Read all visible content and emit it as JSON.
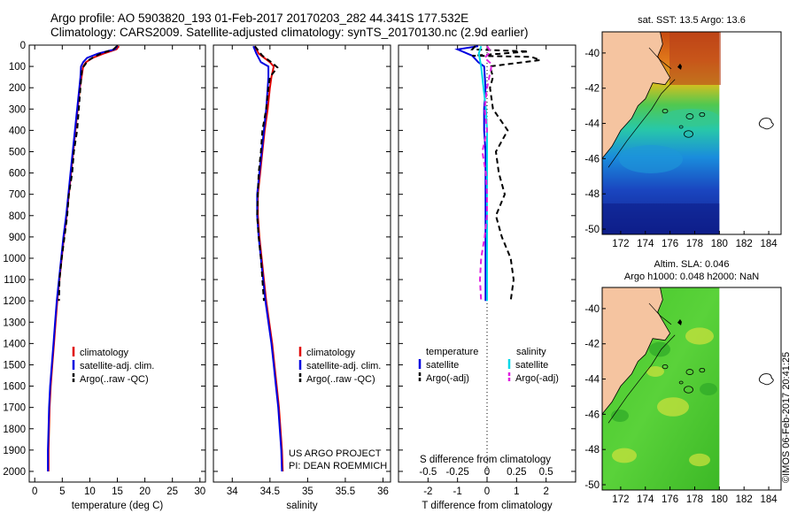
{
  "header": {
    "line1": "Argo profile: AO 5903820_193 01-Feb-2017 20170203_282 44.341S 177.532E",
    "line2": "Climatology: CARS2009. Satellite-adjusted climatology: synTS_20170130.nc (2.9d earlier)"
  },
  "colors": {
    "climatology": "#e00000",
    "satellite": "#0000e0",
    "argo": "#000000",
    "sat_salinity": "#00d8e8",
    "argo_salinity": "#e020e0",
    "land": "#f5c4a0"
  },
  "chart_data": [
    {
      "type": "line",
      "name": "temperature-panel",
      "xlabel": "temperature (deg C)",
      "xlim": [
        -1,
        31
      ],
      "xticks": [
        0,
        5,
        10,
        15,
        20,
        25,
        30
      ],
      "ylim": [
        2050,
        0
      ],
      "yticks": [
        0,
        100,
        200,
        300,
        400,
        500,
        600,
        700,
        800,
        900,
        1000,
        1100,
        1200,
        1300,
        1400,
        1500,
        1600,
        1700,
        1800,
        1900,
        2000
      ],
      "legend": {
        "placement": "lower-middle",
        "entries": [
          "climatology",
          "satellite-adj. clim.",
          "Argo(..raw -QC)"
        ]
      },
      "series": [
        {
          "name": "climatology",
          "color": "#e00000",
          "dash": false,
          "points": [
            [
              15.3,
              5
            ],
            [
              14.8,
              20
            ],
            [
              12.5,
              40
            ],
            [
              10.5,
              60
            ],
            [
              9.3,
              80
            ],
            [
              8.8,
              100
            ],
            [
              8.5,
              150
            ],
            [
              8.2,
              200
            ],
            [
              7.8,
              300
            ],
            [
              7.4,
              400
            ],
            [
              7.0,
              500
            ],
            [
              6.6,
              600
            ],
            [
              6.2,
              700
            ],
            [
              5.8,
              800
            ],
            [
              5.3,
              900
            ],
            [
              4.9,
              1000
            ],
            [
              4.5,
              1100
            ],
            [
              4.1,
              1200
            ],
            [
              3.8,
              1300
            ],
            [
              3.5,
              1400
            ],
            [
              3.2,
              1500
            ],
            [
              2.9,
              1600
            ],
            [
              2.7,
              1700
            ],
            [
              2.6,
              1800
            ],
            [
              2.5,
              1900
            ],
            [
              2.5,
              2000
            ]
          ]
        },
        {
          "name": "satellite-adj. clim.",
          "color": "#0000e0",
          "dash": false,
          "points": [
            [
              15.0,
              5
            ],
            [
              14.5,
              20
            ],
            [
              11.5,
              40
            ],
            [
              9.5,
              60
            ],
            [
              8.8,
              80
            ],
            [
              8.4,
              100
            ],
            [
              8.3,
              150
            ],
            [
              8.1,
              200
            ],
            [
              7.7,
              300
            ],
            [
              7.3,
              400
            ],
            [
              6.9,
              500
            ],
            [
              6.5,
              600
            ],
            [
              6.1,
              700
            ],
            [
              5.7,
              800
            ],
            [
              5.2,
              900
            ],
            [
              4.8,
              1000
            ],
            [
              4.4,
              1100
            ],
            [
              4.0,
              1200
            ],
            [
              3.7,
              1300
            ],
            [
              3.4,
              1400
            ],
            [
              3.1,
              1500
            ],
            [
              2.8,
              1600
            ],
            [
              2.6,
              1700
            ],
            [
              2.5,
              1800
            ],
            [
              2.4,
              1900
            ],
            [
              2.4,
              2000
            ]
          ]
        },
        {
          "name": "Argo(..raw -QC)",
          "color": "#000000",
          "dash": true,
          "points": [
            [
              14.9,
              5
            ],
            [
              14.3,
              20
            ],
            [
              12.0,
              40
            ],
            [
              10.8,
              55
            ],
            [
              9.5,
              75
            ],
            [
              9.2,
              90
            ],
            [
              8.6,
              110
            ],
            [
              8.3,
              200
            ],
            [
              8.0,
              300
            ],
            [
              7.7,
              400
            ],
            [
              7.1,
              500
            ],
            [
              6.8,
              600
            ],
            [
              6.2,
              700
            ],
            [
              5.9,
              800
            ],
            [
              5.4,
              900
            ],
            [
              4.9,
              1000
            ],
            [
              4.5,
              1100
            ],
            [
              4.4,
              1200
            ]
          ]
        }
      ]
    },
    {
      "type": "line",
      "name": "salinity-panel",
      "xlabel": "salinity",
      "xlim": [
        33.75,
        36.1
      ],
      "xticks": [
        34,
        34.5,
        35,
        35.5,
        36
      ],
      "xticklabels": [
        "34",
        "34.5",
        "35",
        "35.5",
        "36"
      ],
      "ylim": [
        2050,
        0
      ],
      "legend": {
        "placement": "lower-middle",
        "entries": [
          "climatology",
          "satellite-adj. clim.",
          "Argo(..raw -QC)"
        ]
      },
      "annotations": [
        "US ARGO PROJECT",
        "PI: DEAN ROEMMICH"
      ],
      "series": [
        {
          "name": "climatology",
          "color": "#e00000",
          "dash": false,
          "points": [
            [
              34.3,
              5
            ],
            [
              34.35,
              40
            ],
            [
              34.5,
              80
            ],
            [
              34.55,
              100
            ],
            [
              34.52,
              150
            ],
            [
              34.5,
              200
            ],
            [
              34.47,
              300
            ],
            [
              34.43,
              400
            ],
            [
              34.4,
              500
            ],
            [
              34.37,
              600
            ],
            [
              34.34,
              700
            ],
            [
              34.34,
              800
            ],
            [
              34.36,
              900
            ],
            [
              34.39,
              1000
            ],
            [
              34.42,
              1100
            ],
            [
              34.45,
              1200
            ],
            [
              34.49,
              1300
            ],
            [
              34.53,
              1400
            ],
            [
              34.56,
              1500
            ],
            [
              34.59,
              1600
            ],
            [
              34.62,
              1700
            ],
            [
              34.64,
              1800
            ],
            [
              34.66,
              1900
            ],
            [
              34.67,
              2000
            ]
          ]
        },
        {
          "name": "satellite-adj. clim.",
          "color": "#0000e0",
          "dash": false,
          "points": [
            [
              34.28,
              5
            ],
            [
              34.32,
              40
            ],
            [
              34.38,
              80
            ],
            [
              34.48,
              100
            ],
            [
              34.48,
              150
            ],
            [
              34.47,
              200
            ],
            [
              34.45,
              300
            ],
            [
              34.42,
              400
            ],
            [
              34.39,
              500
            ],
            [
              34.36,
              600
            ],
            [
              34.33,
              700
            ],
            [
              34.33,
              800
            ],
            [
              34.35,
              900
            ],
            [
              34.38,
              1000
            ],
            [
              34.41,
              1100
            ],
            [
              34.44,
              1200
            ],
            [
              34.48,
              1300
            ],
            [
              34.52,
              1400
            ],
            [
              34.55,
              1500
            ],
            [
              34.58,
              1600
            ],
            [
              34.61,
              1700
            ],
            [
              34.63,
              1800
            ],
            [
              34.65,
              1900
            ],
            [
              34.66,
              2000
            ]
          ]
        },
        {
          "name": "Argo(..raw -QC)",
          "color": "#000000",
          "dash": true,
          "points": [
            [
              34.3,
              5
            ],
            [
              34.4,
              50
            ],
            [
              34.52,
              80
            ],
            [
              34.6,
              105
            ],
            [
              34.5,
              150
            ],
            [
              34.48,
              200
            ],
            [
              34.45,
              300
            ],
            [
              34.4,
              400
            ],
            [
              34.38,
              500
            ],
            [
              34.35,
              600
            ],
            [
              34.34,
              700
            ],
            [
              34.33,
              800
            ],
            [
              34.35,
              900
            ],
            [
              34.38,
              1000
            ],
            [
              34.4,
              1100
            ],
            [
              34.42,
              1200
            ]
          ]
        }
      ]
    },
    {
      "type": "line",
      "name": "difference-panel",
      "xlabel": "T difference from climatology",
      "xlabel_top": "S difference from climatology",
      "xlim": [
        -3,
        3
      ],
      "xticks": [
        -2,
        -1,
        0,
        1,
        2
      ],
      "xticks_top": [
        -0.5,
        -0.25,
        0,
        0.25,
        0.5
      ],
      "xticklabels_top": [
        "-0.5",
        "-0.25",
        "0",
        "0.25",
        "0.5"
      ],
      "ylim": [
        2050,
        0
      ],
      "zero_line": "dotted",
      "legend": {
        "placement": "lower-middle",
        "col1_header": "temperature",
        "col2_header": "salinity",
        "col1": [
          "satellite",
          "Argo(-adj)"
        ],
        "col2": [
          "satellite",
          "Argo(-adj)"
        ]
      },
      "series": [
        {
          "name": "temperature satellite",
          "color": "#0000e0",
          "dash": false,
          "points": [
            [
              -0.3,
              5
            ],
            [
              -1.0,
              20
            ],
            [
              -0.5,
              50
            ],
            [
              -0.3,
              80
            ],
            [
              -0.1,
              100
            ],
            [
              -0.05,
              200
            ],
            [
              -0.1,
              300
            ],
            [
              -0.1,
              400
            ],
            [
              -0.05,
              500
            ],
            [
              -0.05,
              600
            ],
            [
              -0.05,
              700
            ],
            [
              -0.05,
              800
            ],
            [
              -0.05,
              900
            ],
            [
              -0.05,
              1000
            ],
            [
              -0.05,
              1100
            ],
            [
              -0.05,
              1200
            ]
          ]
        },
        {
          "name": "temperature Argo(-adj)",
          "color": "#000000",
          "dash": true,
          "points": [
            [
              -0.4,
              5
            ],
            [
              -0.5,
              20
            ],
            [
              1.4,
              30
            ],
            [
              0.5,
              40
            ],
            [
              -0.5,
              50
            ],
            [
              1.5,
              55
            ],
            [
              1.8,
              70
            ],
            [
              0.1,
              100
            ],
            [
              0.2,
              150
            ],
            [
              0.1,
              200
            ],
            [
              0.2,
              300
            ],
            [
              0.7,
              400
            ],
            [
              0.3,
              500
            ],
            [
              0.4,
              600
            ],
            [
              0.6,
              700
            ],
            [
              0.3,
              800
            ],
            [
              0.5,
              900
            ],
            [
              0.8,
              1000
            ],
            [
              0.9,
              1100
            ],
            [
              0.8,
              1200
            ]
          ]
        },
        {
          "name": "salinity satellite",
          "color": "#00d8e8",
          "dash": false,
          "points": [
            [
              -0.05,
              5
            ],
            [
              -0.07,
              40
            ],
            [
              -0.05,
              100
            ],
            [
              -0.03,
              200
            ],
            [
              -0.01,
              300
            ],
            [
              0.0,
              400
            ],
            [
              0.0,
              500
            ],
            [
              0.0,
              600
            ],
            [
              0.0,
              700
            ],
            [
              0.0,
              800
            ],
            [
              0.0,
              900
            ],
            [
              0.0,
              1000
            ],
            [
              0.0,
              1100
            ],
            [
              0.0,
              1200
            ]
          ]
        },
        {
          "name": "salinity Argo(-adj)",
          "color": "#e020e0",
          "dash": true,
          "points": [
            [
              0.0,
              5
            ],
            [
              0.03,
              30
            ],
            [
              -0.02,
              60
            ],
            [
              0.04,
              90
            ],
            [
              0.03,
              120
            ],
            [
              0.0,
              200
            ],
            [
              -0.02,
              300
            ],
            [
              0.0,
              400
            ],
            [
              -0.04,
              500
            ],
            [
              -0.01,
              600
            ],
            [
              0.0,
              700
            ],
            [
              0.0,
              800
            ],
            [
              -0.02,
              900
            ],
            [
              -0.05,
              1000
            ],
            [
              -0.06,
              1100
            ],
            [
              -0.05,
              1200
            ]
          ]
        }
      ]
    },
    {
      "type": "heatmap",
      "name": "sst-map",
      "title": "sat. SST: 13.5 Argo: 13.6",
      "xlim": [
        170.5,
        185
      ],
      "ylim": [
        -50.3,
        -38.8
      ],
      "xticks": [
        172,
        174,
        176,
        178,
        180,
        182,
        184
      ],
      "yticks": [
        -40,
        -42,
        -44,
        -46,
        -48,
        -50
      ]
    },
    {
      "type": "heatmap",
      "name": "sla-map",
      "title_line1": "Altim. SLA: 0.046",
      "title_line2": "Argo h1000: 0.048 h2000: NaN",
      "xlim": [
        170.5,
        185
      ],
      "ylim": [
        -50.3,
        -38.8
      ],
      "xticks": [
        172,
        174,
        176,
        178,
        180,
        182,
        184
      ],
      "yticks": [
        -40,
        -42,
        -44,
        -46,
        -48,
        -50
      ]
    }
  ],
  "credit": "©IMOS 06-Feb-2017 20:41:25"
}
